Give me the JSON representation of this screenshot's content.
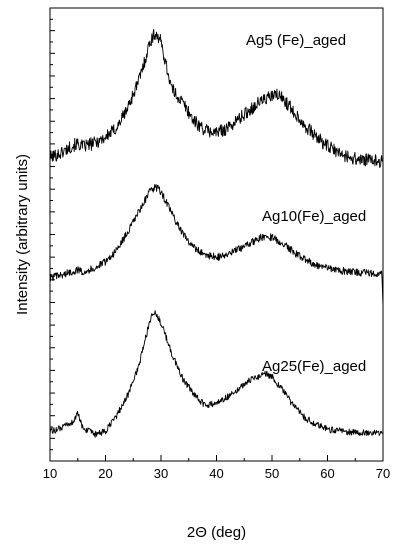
{
  "chart_data": {
    "type": "line",
    "title": "",
    "xlabel": "2Θ (deg)",
    "ylabel": "Intensity (arbitrary units)",
    "xlim": [
      10,
      70
    ],
    "ylim": [
      0,
      100
    ],
    "x_ticks": [
      10,
      20,
      30,
      40,
      50,
      60,
      70
    ],
    "y_tick_labels_shown": false,
    "grid": false,
    "legend": "none",
    "noise_amplitude": 0.9,
    "series": [
      {
        "name": "Ag5 (Fe)_aged",
        "points": [
          [
            10,
            67.0
          ],
          [
            12,
            68.0
          ],
          [
            14,
            69.6
          ],
          [
            15,
            70.0
          ],
          [
            16,
            69.4
          ],
          [
            18,
            70.2
          ],
          [
            20,
            71.5
          ],
          [
            22,
            73.5
          ],
          [
            24,
            78.0
          ],
          [
            26,
            84.0
          ],
          [
            27,
            88.0
          ],
          [
            28,
            92.5
          ],
          [
            29,
            94.5
          ],
          [
            30,
            92.5
          ],
          [
            31,
            87.0
          ],
          [
            32,
            82.0
          ],
          [
            33,
            80.5
          ],
          [
            34,
            79.0
          ],
          [
            36,
            75.0
          ],
          [
            38,
            73.0
          ],
          [
            40,
            72.5
          ],
          [
            42,
            73.5
          ],
          [
            44,
            75.5
          ],
          [
            46,
            77.5
          ],
          [
            48,
            79.5
          ],
          [
            50,
            80.5
          ],
          [
            51,
            80.8
          ],
          [
            52,
            80.0
          ],
          [
            54,
            77.0
          ],
          [
            56,
            74.0
          ],
          [
            58,
            71.5
          ],
          [
            60,
            69.5
          ],
          [
            62,
            68.0
          ],
          [
            64,
            67.0
          ],
          [
            66,
            66.5
          ],
          [
            68,
            66.3
          ],
          [
            70,
            66.2
          ]
        ]
      },
      {
        "name": "Ag10(Fe)_aged",
        "points": [
          [
            10,
            40.5
          ],
          [
            12,
            41.0
          ],
          [
            14,
            41.8
          ],
          [
            15,
            42.2
          ],
          [
            16,
            41.8
          ],
          [
            18,
            42.5
          ],
          [
            20,
            44.0
          ],
          [
            22,
            46.5
          ],
          [
            24,
            50.5
          ],
          [
            26,
            55.0
          ],
          [
            28,
            59.5
          ],
          [
            29,
            60.5
          ],
          [
            30,
            59.5
          ],
          [
            32,
            54.5
          ],
          [
            34,
            50.0
          ],
          [
            36,
            47.0
          ],
          [
            38,
            45.5
          ],
          [
            40,
            45.0
          ],
          [
            42,
            45.5
          ],
          [
            44,
            46.8
          ],
          [
            46,
            48.0
          ],
          [
            48,
            49.3
          ],
          [
            49,
            49.6
          ],
          [
            50,
            49.4
          ],
          [
            52,
            48.0
          ],
          [
            54,
            46.0
          ],
          [
            56,
            44.5
          ],
          [
            58,
            43.3
          ],
          [
            60,
            42.6
          ],
          [
            62,
            42.1
          ],
          [
            64,
            41.8
          ],
          [
            66,
            41.6
          ],
          [
            68,
            41.5
          ],
          [
            69.8,
            41.4
          ],
          [
            70,
            34.0
          ]
        ]
      },
      {
        "name": "Ag25(Fe)_aged",
        "points": [
          [
            10,
            6.5
          ],
          [
            12,
            7.2
          ],
          [
            14,
            8.5
          ],
          [
            15,
            10.5
          ],
          [
            15.5,
            8.5
          ],
          [
            16,
            7.3
          ],
          [
            18,
            5.8
          ],
          [
            20,
            6.5
          ],
          [
            22,
            10.0
          ],
          [
            24,
            14.5
          ],
          [
            26,
            21.0
          ],
          [
            27,
            26.0
          ],
          [
            28,
            31.0
          ],
          [
            28.5,
            33.0
          ],
          [
            29,
            32.5
          ],
          [
            30,
            30.5
          ],
          [
            32,
            23.5
          ],
          [
            34,
            18.0
          ],
          [
            36,
            14.5
          ],
          [
            38,
            12.2
          ],
          [
            40,
            12.8
          ],
          [
            42,
            14.2
          ],
          [
            44,
            16.0
          ],
          [
            46,
            17.8
          ],
          [
            48,
            19.0
          ],
          [
            49,
            19.3
          ],
          [
            50,
            18.6
          ],
          [
            52,
            15.5
          ],
          [
            54,
            12.0
          ],
          [
            56,
            9.5
          ],
          [
            58,
            8.0
          ],
          [
            60,
            7.0
          ],
          [
            62,
            6.7
          ],
          [
            64,
            6.4
          ],
          [
            66,
            6.2
          ],
          [
            68,
            6.2
          ],
          [
            70,
            6.1
          ]
        ]
      }
    ]
  }
}
